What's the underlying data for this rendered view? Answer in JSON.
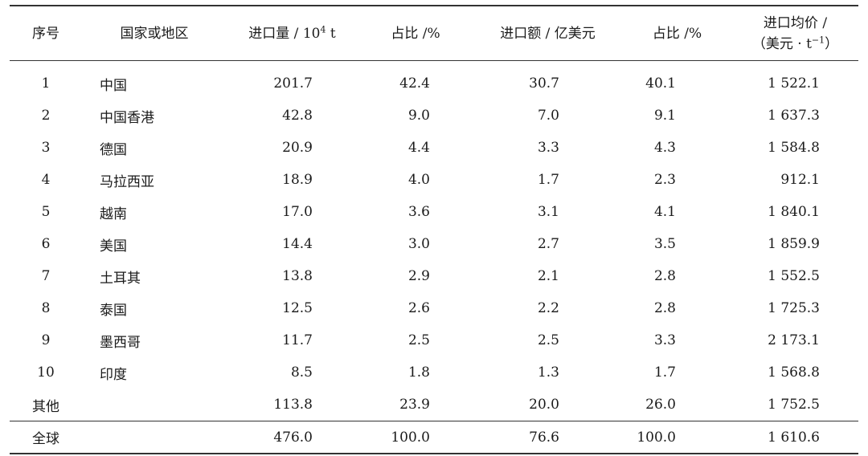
{
  "table": {
    "headers": {
      "index": "序号",
      "region": "国家或地区",
      "volume_prefix": "进口量 / 10",
      "volume_sup": "4",
      "volume_suffix": " t",
      "volume_share": "占比 /%",
      "amount": "进口额 / 亿美元",
      "amount_share": "占比 /%",
      "price_line1": "进口均价 /",
      "price_line2_prefix": "（美元 · t",
      "price_line2_sup": "−1",
      "price_line2_suffix": "）"
    },
    "rows": [
      {
        "index": "1",
        "region": "中国",
        "volume": "201.7",
        "volume_share": "42.4",
        "amount": "30.7",
        "amount_share": "40.1",
        "price": "1 522.1"
      },
      {
        "index": "2",
        "region": "中国香港",
        "volume": "42.8",
        "volume_share": "9.0",
        "amount": "7.0",
        "amount_share": "9.1",
        "price": "1 637.3"
      },
      {
        "index": "3",
        "region": "德国",
        "volume": "20.9",
        "volume_share": "4.4",
        "amount": "3.3",
        "amount_share": "4.3",
        "price": "1 584.8"
      },
      {
        "index": "4",
        "region": "马拉西亚",
        "volume": "18.9",
        "volume_share": "4.0",
        "amount": "1.7",
        "amount_share": "2.3",
        "price": "912.1"
      },
      {
        "index": "5",
        "region": "越南",
        "volume": "17.0",
        "volume_share": "3.6",
        "amount": "3.1",
        "amount_share": "4.1",
        "price": "1 840.1"
      },
      {
        "index": "6",
        "region": "美国",
        "volume": "14.4",
        "volume_share": "3.0",
        "amount": "2.7",
        "amount_share": "3.5",
        "price": "1 859.9"
      },
      {
        "index": "7",
        "region": "土耳其",
        "volume": "13.8",
        "volume_share": "2.9",
        "amount": "2.1",
        "amount_share": "2.8",
        "price": "1 552.5"
      },
      {
        "index": "8",
        "region": "泰国",
        "volume": "12.5",
        "volume_share": "2.6",
        "amount": "2.2",
        "amount_share": "2.8",
        "price": "1 725.3"
      },
      {
        "index": "9",
        "region": "墨西哥",
        "volume": "11.7",
        "volume_share": "2.5",
        "amount": "2.5",
        "amount_share": "3.3",
        "price": "2 173.1"
      },
      {
        "index": "10",
        "region": "印度",
        "volume": "8.5",
        "volume_share": "1.8",
        "amount": "1.3",
        "amount_share": "1.7",
        "price": "1 568.8"
      },
      {
        "index": "其他",
        "region": "",
        "volume": "113.8",
        "volume_share": "23.9",
        "amount": "20.0",
        "amount_share": "26.0",
        "price": "1 752.5"
      }
    ],
    "total": {
      "index": "全球",
      "region": "",
      "volume": "476.0",
      "volume_share": "100.0",
      "amount": "76.6",
      "amount_share": "100.0",
      "price": "1 610.6"
    }
  }
}
